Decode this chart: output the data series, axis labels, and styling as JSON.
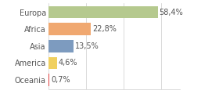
{
  "categories": [
    "Europa",
    "Africa",
    "Asia",
    "America",
    "Oceania"
  ],
  "values": [
    58.4,
    22.8,
    13.5,
    4.6,
    0.7
  ],
  "labels": [
    "58,4%",
    "22,8%",
    "13,5%",
    "4,6%",
    "0,7%"
  ],
  "bar_colors": [
    "#b5c98e",
    "#f0a870",
    "#7d9bbf",
    "#f0d060",
    "#e04040"
  ],
  "background_color": "#ffffff",
  "xlim": [
    0,
    70
  ],
  "label_fontsize": 7.0,
  "value_fontsize": 7.0,
  "grid_xticks": [
    0,
    20,
    40,
    60
  ],
  "grid_color": "#cccccc"
}
